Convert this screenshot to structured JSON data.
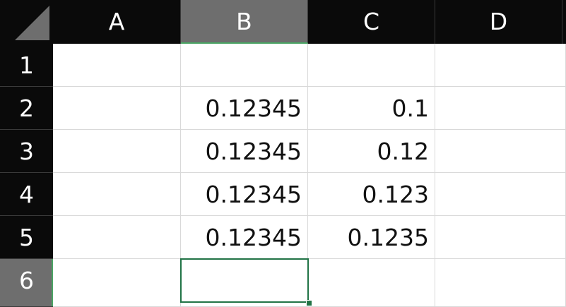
{
  "columns": [
    {
      "label": "A",
      "selected": false
    },
    {
      "label": "B",
      "selected": true
    },
    {
      "label": "C",
      "selected": false
    },
    {
      "label": "D",
      "selected": false
    }
  ],
  "rows": [
    {
      "label": "1",
      "selected": false,
      "cells": {
        "A": "",
        "B": "",
        "C": "",
        "D": ""
      }
    },
    {
      "label": "2",
      "selected": false,
      "cells": {
        "A": "",
        "B": "0.12345",
        "C": "0.1",
        "D": ""
      }
    },
    {
      "label": "3",
      "selected": false,
      "cells": {
        "A": "",
        "B": "0.12345",
        "C": "0.12",
        "D": ""
      }
    },
    {
      "label": "4",
      "selected": false,
      "cells": {
        "A": "",
        "B": "0.12345",
        "C": "0.123",
        "D": ""
      }
    },
    {
      "label": "5",
      "selected": false,
      "cells": {
        "A": "",
        "B": "0.12345",
        "C": "0.1235",
        "D": ""
      }
    },
    {
      "label": "6",
      "selected": true,
      "cells": {
        "A": "",
        "B": "",
        "C": "",
        "D": ""
      }
    }
  ],
  "active_cell": "B6",
  "colors": {
    "header_bg": "#0a0a0a",
    "header_selected_bg": "#6e6e6e",
    "selection_border": "#217346",
    "gridline": "#d9d9d9"
  }
}
